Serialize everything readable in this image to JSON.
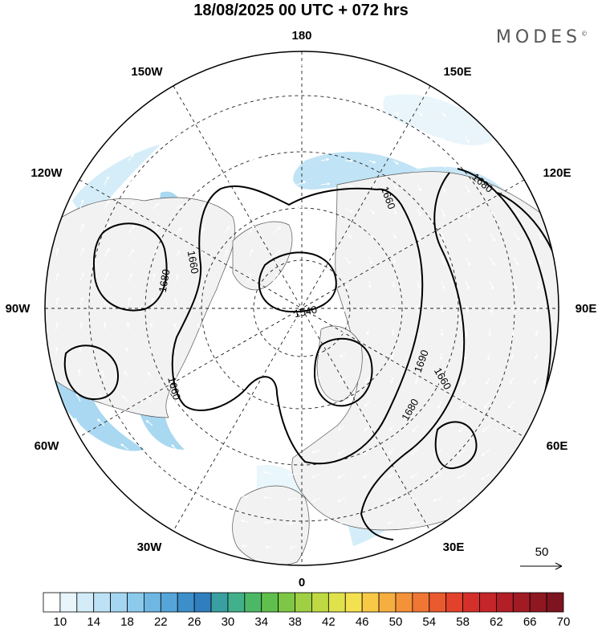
{
  "header": {
    "title": "18/08/2025  00 UTC  + 072 hrs",
    "brand": "MODES",
    "brand_mark": "©"
  },
  "map": {
    "projection": "north-polar-stereographic",
    "longitude_labels": {
      "top": "180",
      "top_left": "150W",
      "top_right": "150E",
      "upper_left": "120W",
      "upper_right": "120E",
      "left": "90W",
      "right": "90E",
      "lower_left": "60W",
      "lower_right": "60E",
      "bottom_left": "30W",
      "bottom_right": "30E",
      "bottom": "0"
    },
    "contour_labels": [
      "1540",
      "1660",
      "1660",
      "1660",
      "1660",
      "1680",
      "1680",
      "1680",
      "1690"
    ],
    "reference_vector": {
      "label": "50"
    },
    "colors": {
      "land": "#f2f2f2",
      "background": "#ffffff",
      "contour": "#000000",
      "vector": "#ffffff"
    }
  },
  "colorbar": {
    "ticks": [
      "10",
      "14",
      "18",
      "22",
      "26",
      "30",
      "34",
      "38",
      "42",
      "46",
      "50",
      "54",
      "58",
      "62",
      "66",
      "70"
    ],
    "colors": [
      "#ffffff",
      "#e8f5fb",
      "#d3ecf8",
      "#bde2f5",
      "#a5d6f1",
      "#8ccaec",
      "#6fb7e3",
      "#55a5d8",
      "#3d8fca",
      "#2f7fbf",
      "#3a9fa0",
      "#42b08b",
      "#4cb866",
      "#5fbf4c",
      "#7ec746",
      "#9fcf43",
      "#bfd942",
      "#dfe24a",
      "#f3e14f",
      "#f7c947",
      "#f6ae40",
      "#f4923a",
      "#f07634",
      "#ea5a2f",
      "#e2412c",
      "#d52f2b",
      "#c42629",
      "#b21f27",
      "#a11b25",
      "#8f1722",
      "#7e141f"
    ]
  }
}
